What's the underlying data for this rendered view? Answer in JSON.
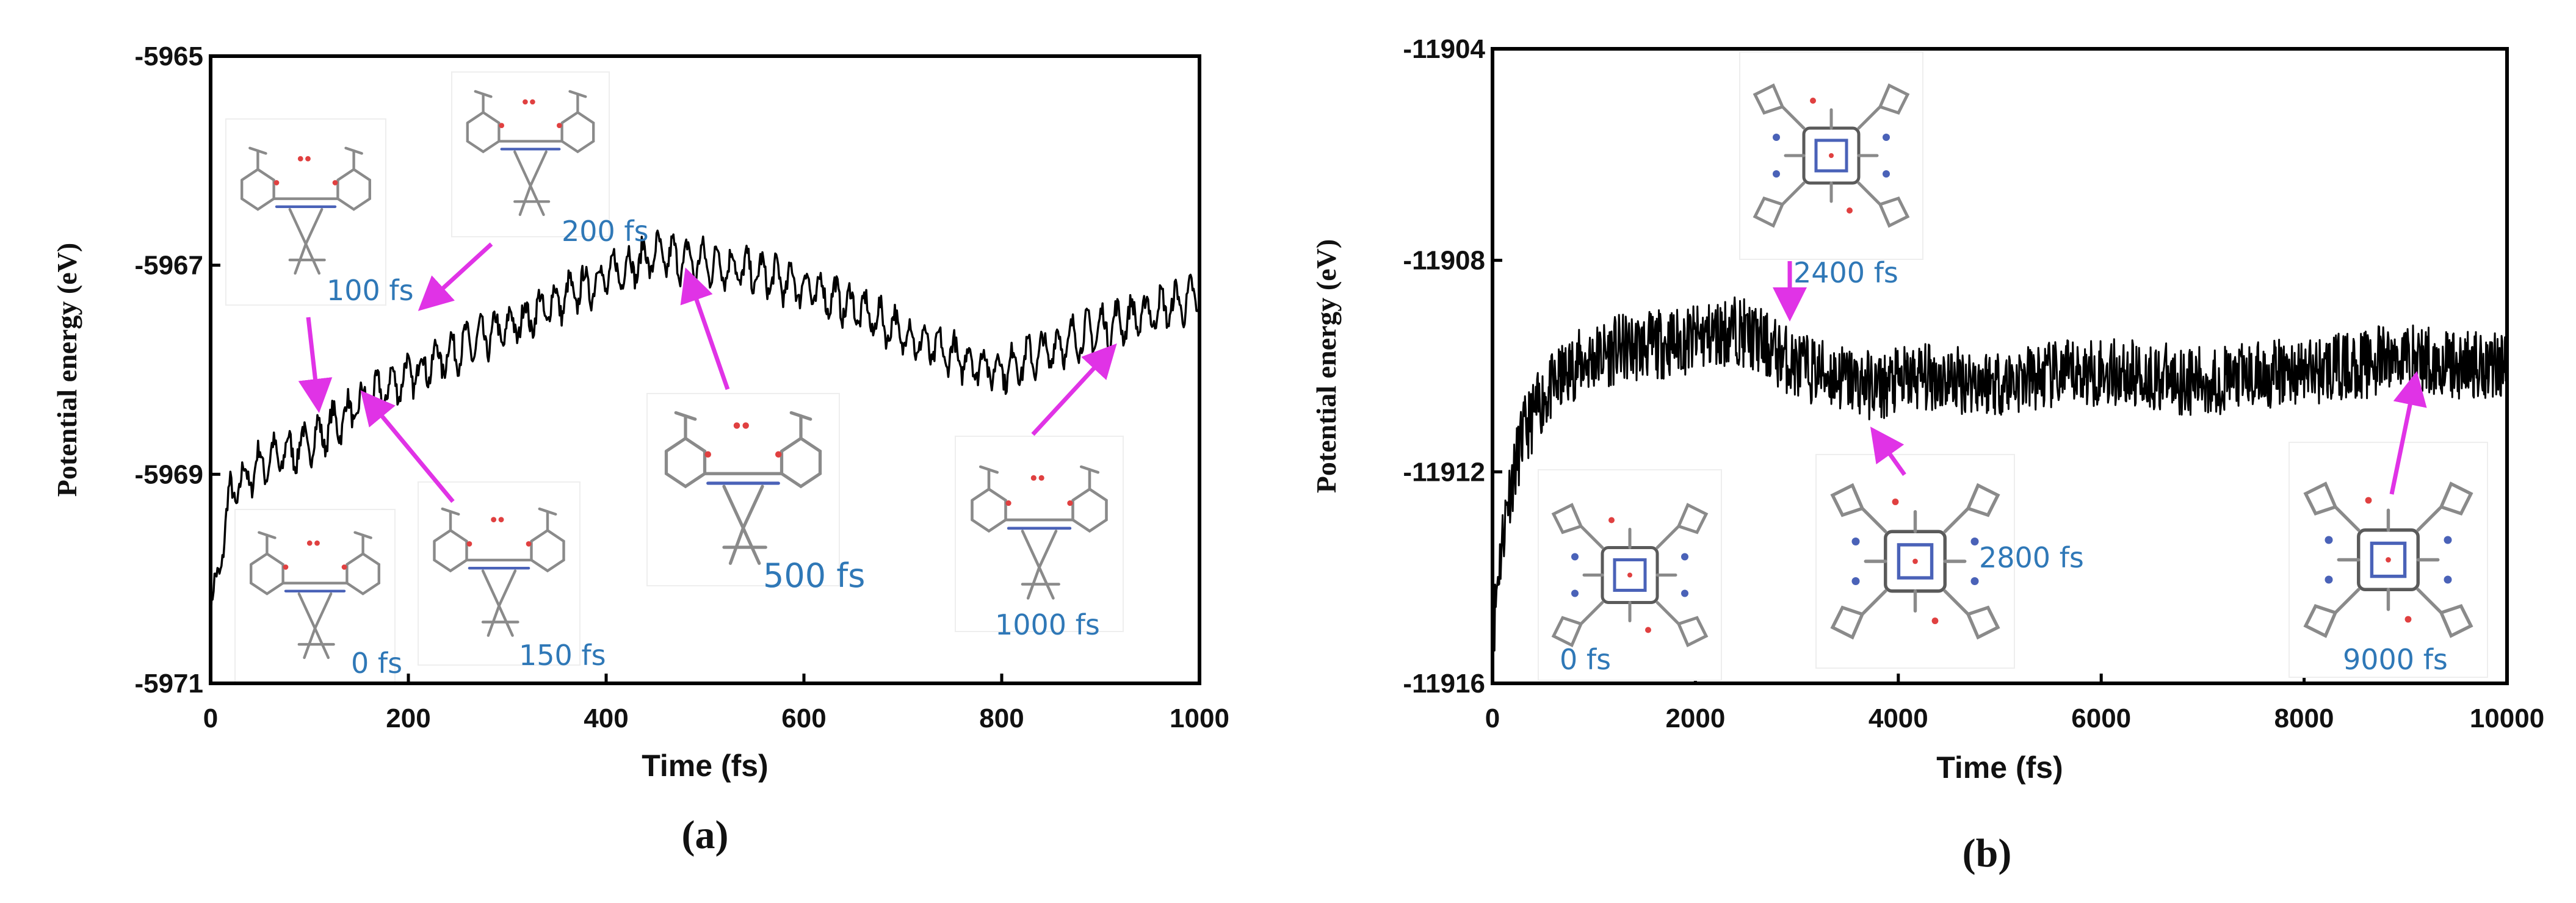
{
  "chart_data": [
    {
      "type": "line",
      "panel_label": "(a)",
      "xlabel": "Time (fs)",
      "ylabel": "Potential energy (eV)",
      "xlim": [
        0,
        1000
      ],
      "ylim": [
        -5971,
        -5965
      ],
      "xticks": [
        0,
        200,
        400,
        600,
        800,
        1000
      ],
      "yticks": [
        -5971,
        -5969,
        -5967,
        -5965
      ],
      "grid": false,
      "series": [
        {
          "name": "Potential energy",
          "color": "#000000",
          "x": [
            0,
            20,
            50,
            100,
            150,
            200,
            250,
            300,
            350,
            400,
            450,
            480,
            520,
            560,
            600,
            640,
            680,
            720,
            760,
            800,
            850,
            900,
            950,
            1000
          ],
          "y": [
            -5970.4,
            -5969.2,
            -5968.9,
            -5968.7,
            -5968.35,
            -5968.05,
            -5967.8,
            -5967.6,
            -5967.35,
            -5967.1,
            -5966.9,
            -5966.95,
            -5967.0,
            -5967.1,
            -5967.2,
            -5967.35,
            -5967.55,
            -5967.75,
            -5967.9,
            -5968.0,
            -5967.8,
            -5967.6,
            -5967.45,
            -5967.3
          ],
          "fluctuation_eV": 0.22
        }
      ],
      "annotations": [
        {
          "label": "0 fs",
          "time": 0,
          "color": "#2f78b7"
        },
        {
          "label": "100 fs",
          "time": 100,
          "color": "#2f78b7"
        },
        {
          "label": "150 fs",
          "time": 150,
          "color": "#2f78b7"
        },
        {
          "label": "200 fs",
          "time": 200,
          "color": "#2f78b7"
        },
        {
          "label": "500 fs",
          "time": 500,
          "color": "#2f78b7"
        },
        {
          "label": "1000 fs",
          "time": 1000,
          "color": "#2f78b7"
        }
      ],
      "arrow_color": "#e033e6"
    },
    {
      "type": "line",
      "panel_label": "(b)",
      "xlabel": "Time (fs)",
      "ylabel": "Potential energy (eV)",
      "xlim": [
        0,
        10000
      ],
      "ylim": [
        -11916,
        -11904
      ],
      "xticks": [
        0,
        2000,
        4000,
        6000,
        8000,
        10000
      ],
      "yticks": [
        -11916,
        -11912,
        -11908,
        -11904
      ],
      "grid": false,
      "series": [
        {
          "name": "Potential energy",
          "color": "#000000",
          "x": [
            0,
            50,
            150,
            300,
            500,
            800,
            1200,
            1600,
            2000,
            2400,
            2600,
            3000,
            3400,
            3800,
            4200,
            5000,
            6000,
            7000,
            8000,
            8500,
            9000,
            9500,
            10000
          ],
          "y": [
            -11915.3,
            -11914.0,
            -11912.5,
            -11911.3,
            -11910.6,
            -11910.0,
            -11909.7,
            -11909.6,
            -11909.5,
            -11909.3,
            -11909.5,
            -11910.0,
            -11910.2,
            -11910.4,
            -11910.2,
            -11910.3,
            -11910.1,
            -11910.3,
            -11910.1,
            -11910.0,
            -11909.8,
            -11910.0,
            -11909.9
          ],
          "fluctuation_eV": 0.6
        }
      ],
      "annotations": [
        {
          "label": "0 fs",
          "time": 0,
          "color": "#2f78b7"
        },
        {
          "label": "2400 fs",
          "time": 2400,
          "color": "#2f78b7"
        },
        {
          "label": "2800 fs",
          "time": 2800,
          "color": "#2f78b7"
        },
        {
          "label": "9000 fs",
          "time": 9000,
          "color": "#2f78b7"
        }
      ],
      "arrow_color": "#e033e6"
    }
  ]
}
